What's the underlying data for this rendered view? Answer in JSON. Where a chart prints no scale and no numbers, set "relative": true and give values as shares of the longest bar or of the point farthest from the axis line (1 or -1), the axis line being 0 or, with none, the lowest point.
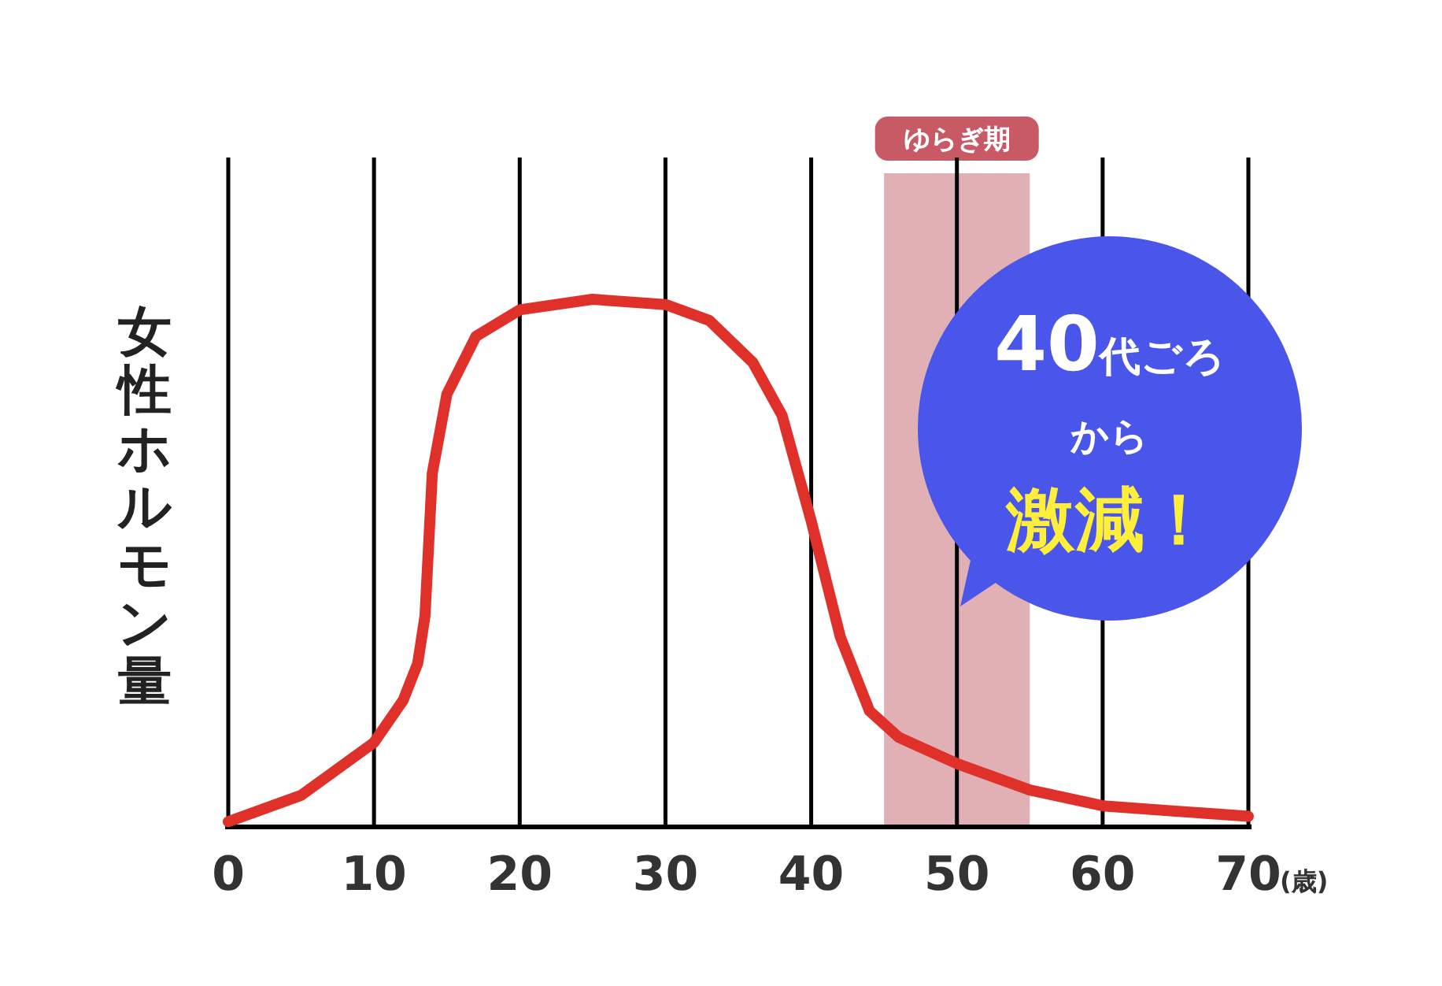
{
  "chart_data": {
    "type": "line",
    "ylabel": "女性ホルモン量",
    "xlabel": "(歳)",
    "relative": true,
    "grid": "x",
    "xlim": [
      0,
      70
    ],
    "xticks": [
      0,
      10,
      20,
      30,
      40,
      50,
      60,
      70
    ],
    "x": [
      0,
      5,
      10,
      12,
      13,
      13.5,
      14,
      15,
      17,
      20,
      25,
      30,
      33,
      36,
      38,
      40,
      42,
      44,
      46,
      50,
      55,
      60,
      65,
      70
    ],
    "series": [
      {
        "color": "#e0302a",
        "values": [
          0.01,
          0.06,
          0.16,
          0.24,
          0.31,
          0.4,
          0.67,
          0.82,
          0.93,
          0.98,
          1.0,
          0.99,
          0.96,
          0.88,
          0.78,
          0.58,
          0.36,
          0.22,
          0.17,
          0.12,
          0.07,
          0.04,
          0.03,
          0.02
        ]
      }
    ],
    "bands": [
      {
        "axis": "x",
        "from": 45,
        "to": 55,
        "label": "ゆらぎ期",
        "color": "#e0b0b5"
      }
    ],
    "annotations": [
      "40代ごろ",
      "から",
      "激減！"
    ]
  }
}
